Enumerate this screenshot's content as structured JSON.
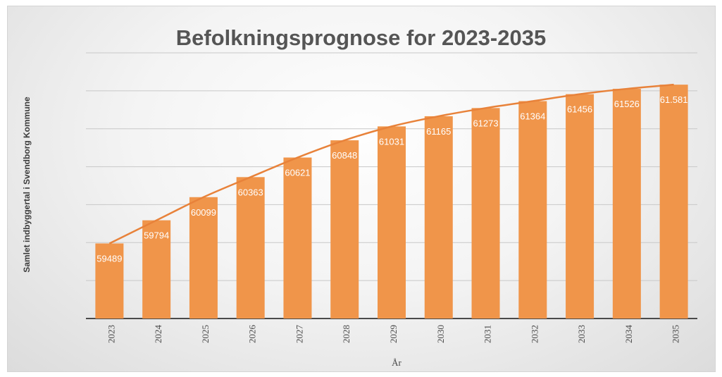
{
  "chart_data": {
    "type": "bar",
    "title": "Befolkningsprognose for 2023-2035",
    "xlabel": "År",
    "ylabel": "Samlet indbyggertal i Svendborg Kommune",
    "categories": [
      "2023",
      "2024",
      "2025",
      "2026",
      "2027",
      "2028",
      "2029",
      "2030",
      "2031",
      "2032",
      "2033",
      "2034",
      "2035"
    ],
    "values": [
      59489,
      59794,
      60099,
      60363,
      60621,
      60848,
      61031,
      61165,
      61273,
      61364,
      61456,
      61526,
      61581
    ],
    "data_labels": [
      "59489",
      "59794",
      "60099",
      "60363",
      "60621",
      "60848",
      "61031",
      "61165",
      "61273",
      "61364",
      "61456",
      "61526",
      "61.581"
    ],
    "ylim": [
      58500,
      62000
    ],
    "grid": true,
    "y_tick_labels_visible": false,
    "trendline": true,
    "colors": {
      "bar": "#f0954a",
      "trendline": "#e8823a",
      "grid": "#c8c8c8",
      "label": "#ffffff"
    }
  }
}
